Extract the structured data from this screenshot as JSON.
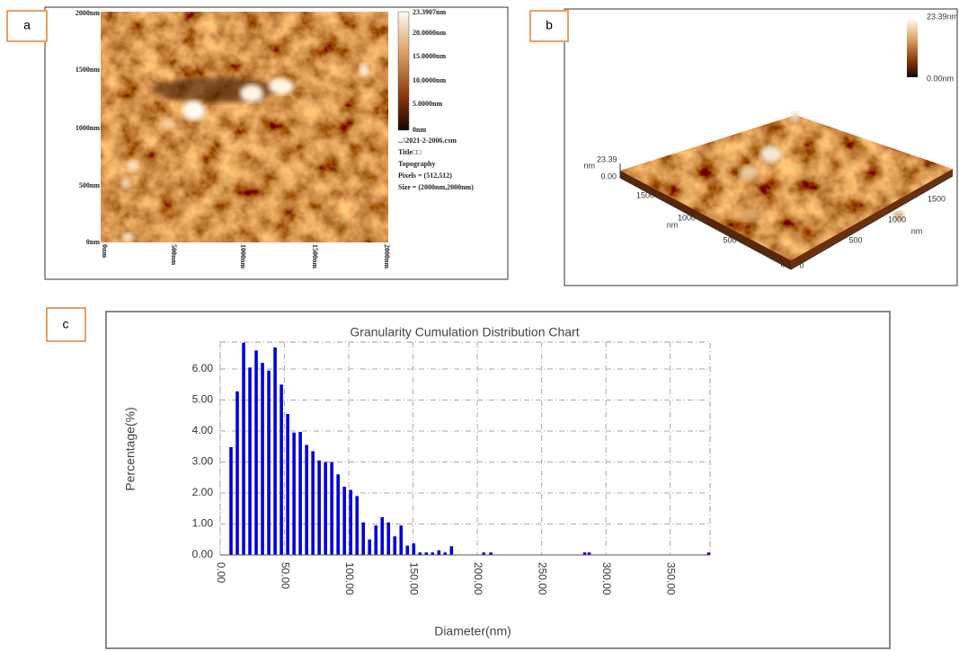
{
  "panel_a": {
    "label": "a",
    "y_axis_labels": [
      "2000nm",
      "1500nm",
      "1000nm",
      "500nm",
      "0nm"
    ],
    "x_axis_labels": [
      "0nm",
      "500nm",
      "1000nm",
      "1500nm",
      "2000nm"
    ],
    "colorbar_labels": [
      "23.3907nm",
      "20.0000nm",
      "15.0000nm",
      "10.0000nm",
      "5.0000nm",
      "0nm"
    ],
    "info": [
      "...\\2021-2-2006.csm",
      "Title□□",
      "Topography",
      "Pixels = (512,512)",
      "Size = (2000nm,2000nm)"
    ]
  },
  "panel_b": {
    "label": "b",
    "colorbar_labels": [
      "23.39nm",
      "0.00nm"
    ],
    "z_axis_labels": [
      "23.39",
      "nm",
      "0.00"
    ],
    "left_axis_labels": [
      "1500",
      "1000",
      "nm",
      "500",
      "0"
    ],
    "right_axis_labels": [
      "1500",
      "1000",
      "nm",
      "500",
      "0"
    ]
  },
  "panel_c": {
    "label": "c"
  },
  "chart_data": {
    "type": "bar",
    "title": "Granularity Cumulation Distribution  Chart",
    "x_label": "Diameter(nm)",
    "y_label": "Percentage(%)",
    "color": "#0000e0",
    "x": [
      8.4,
      13.3,
      18.2,
      23.1,
      28.0,
      32.9,
      37.8,
      42.7,
      47.6,
      52.5,
      57.4,
      62.3,
      67.2,
      72.1,
      77.0,
      81.9,
      86.8,
      91.7,
      96.6,
      101.5,
      106.4,
      111.3,
      116.2,
      121.1,
      126.0,
      130.9,
      135.8,
      140.7,
      145.6,
      150.5,
      155.4,
      160.3,
      165.2,
      170.1,
      175.0,
      179.9,
      205.0,
      210.5,
      283.5,
      287.0,
      380.0
    ],
    "values": [
      3.48,
      5.28,
      6.85,
      6.05,
      6.6,
      6.2,
      5.95,
      6.7,
      5.5,
      4.55,
      3.95,
      3.97,
      3.55,
      3.35,
      3.05,
      3.0,
      3.0,
      2.6,
      2.2,
      2.1,
      1.9,
      1.05,
      0.5,
      0.95,
      1.22,
      1.05,
      0.6,
      0.95,
      0.3,
      0.37,
      0.08,
      0.08,
      0.08,
      0.15,
      0.08,
      0.28,
      0.08,
      0.08,
      0.08,
      0.08,
      0.08
    ],
    "xlim": [
      0,
      381
    ],
    "ylim": [
      0,
      6.87
    ],
    "xticks": [
      {
        "value": 0,
        "label": "0.00"
      },
      {
        "value": 50,
        "label": "50.00"
      },
      {
        "value": 100,
        "label": "100.00"
      },
      {
        "value": 150,
        "label": "150.00"
      },
      {
        "value": 200,
        "label": "200.00"
      },
      {
        "value": 250,
        "label": "250.00"
      },
      {
        "value": 300,
        "label": "300.00"
      },
      {
        "value": 350,
        "label": "350.00"
      }
    ],
    "yticks": [
      {
        "value": 0,
        "label": "0.00"
      },
      {
        "value": 1,
        "label": "1.00"
      },
      {
        "value": 2,
        "label": "2.00"
      },
      {
        "value": 3,
        "label": "3.00"
      },
      {
        "value": 4,
        "label": "4.00"
      },
      {
        "value": 5,
        "label": "5.00"
      },
      {
        "value": 6,
        "label": "6.00"
      }
    ],
    "grid": true
  }
}
